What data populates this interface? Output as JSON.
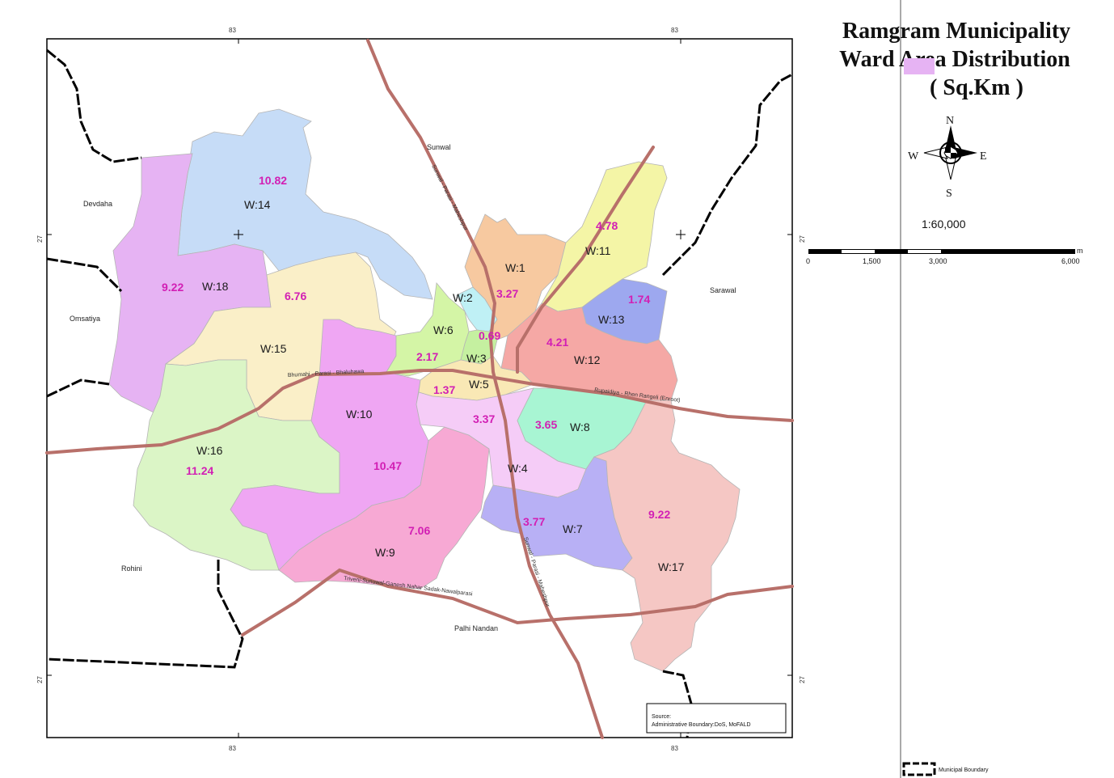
{
  "title": {
    "line1": "Ramgram Municipality",
    "line2": "Ward Area Distribution",
    "line3": "( Sq.Km )"
  },
  "compass": {
    "n": "N",
    "s": "S",
    "e": "E",
    "w": "W"
  },
  "scale": {
    "ratio": "1:60,000",
    "ticks": [
      "0",
      "1,500",
      "3,000",
      "6,000"
    ],
    "unit": "m"
  },
  "coords": {
    "lon_left": "83",
    "lon_right": "83",
    "lat_top": "27",
    "lat_bottom": "27"
  },
  "source": {
    "line1": "Source:",
    "line2": "Administrative Boundary:DoS, MoFALD"
  },
  "legend": {
    "boundary_label": "Municipal Boundary"
  },
  "places": {
    "devdaha": "Devdaha",
    "omsatiya": "Omsatiya",
    "rohini": "Rohini",
    "sunwal": "Sunwal",
    "sarawal": "Sarawal",
    "palhi": "Palhi Nandan"
  },
  "roads": {
    "r1": "Sunwal - Parasi - Maheshpur",
    "r2": "Bhumahi - Parasi - Bhaluhawa",
    "r3": "Rupaidiya - Rhen Rangeli (Enroot)",
    "r4": "Sunwal - Parasi - Maheshpur",
    "r5": "Triveni-Sunuwal-Ganesh Nahar Sadak-Nawalparasi"
  },
  "wards": [
    {
      "id": "W:1",
      "area": "3.27",
      "color": "#f7c9a0"
    },
    {
      "id": "W:2",
      "area": "",
      "color": "#bff0f5"
    },
    {
      "id": "W:3",
      "area": "0.69",
      "color": "#c5f0a0"
    },
    {
      "id": "W:4",
      "area": "3.37",
      "color": "#f5ccf7"
    },
    {
      "id": "W:5",
      "area": "1.37",
      "color": "#f9e8b5"
    },
    {
      "id": "W:6",
      "area": "2.17",
      "color": "#d4f5a6"
    },
    {
      "id": "W:7",
      "area": "3.77",
      "color": "#b8b0f5"
    },
    {
      "id": "W:8",
      "area": "3.65",
      "color": "#a8f5d3"
    },
    {
      "id": "W:9",
      "area": "7.06",
      "color": "#f7a9d4"
    },
    {
      "id": "W:10",
      "area": "10.47",
      "color": "#efa6f3"
    },
    {
      "id": "W:11",
      "area": "4.78",
      "color": "#f4f5a6"
    },
    {
      "id": "W:12",
      "area": "4.21",
      "color": "#f5a8a5"
    },
    {
      "id": "W:13",
      "area": "1.74",
      "color": "#9da8ef"
    },
    {
      "id": "W:14",
      "area": "10.82",
      "color": "#c6dcf7"
    },
    {
      "id": "W:15",
      "area": "6.76",
      "color": "#faefc8"
    },
    {
      "id": "W:16",
      "area": "11.24",
      "color": "#dbf5c6"
    },
    {
      "id": "W:17",
      "area": "9.22",
      "color": "#f5c7c4"
    },
    {
      "id": "W:18",
      "area": "9.22",
      "color": "#e6b3f3"
    }
  ],
  "colors": {
    "road": "#b8706a",
    "boundary": "#000000",
    "value_text": "#d21fb4"
  }
}
